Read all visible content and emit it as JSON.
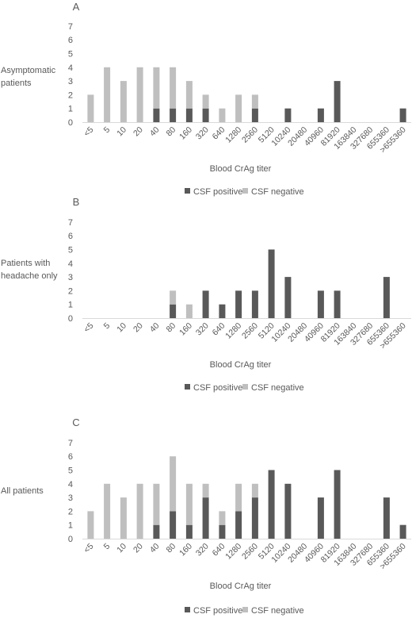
{
  "colors": {
    "positive": "#595959",
    "negative": "#BFBFBF",
    "text": "#595959"
  },
  "chart_data": [
    {
      "type": "bar",
      "stacked": true,
      "panel_label": "A",
      "row_label": [
        "Asymptomatic",
        "patients"
      ],
      "xlabel": "Blood CrAg titer",
      "ylim": [
        0,
        7
      ],
      "yticks": [
        0,
        1,
        2,
        3,
        4,
        5,
        6,
        7
      ],
      "grid": false,
      "legend_position": "bottom",
      "categories": [
        "<5",
        "5",
        "10",
        "20",
        "40",
        "80",
        "160",
        "320",
        "640",
        "1280",
        "2560",
        "5120",
        "10240",
        "20480",
        "40960",
        "81920",
        "163840",
        "327680",
        "655360",
        ">655360"
      ],
      "series": [
        {
          "name": "CSF positive",
          "values": [
            0,
            0,
            0,
            0,
            1,
            1,
            1,
            1,
            0,
            0,
            1,
            0,
            1,
            0,
            1,
            3,
            0,
            0,
            0,
            1
          ]
        },
        {
          "name": "CSF negative",
          "values": [
            2,
            4,
            3,
            4,
            3,
            3,
            2,
            1,
            1,
            2,
            1,
            0,
            0,
            0,
            0,
            0,
            0,
            0,
            0,
            0
          ]
        }
      ]
    },
    {
      "type": "bar",
      "stacked": true,
      "panel_label": "B",
      "row_label": [
        "Patients with",
        "headache only"
      ],
      "xlabel": "Blood CrAg titer",
      "ylim": [
        0,
        7
      ],
      "yticks": [
        0,
        1,
        2,
        3,
        4,
        5,
        6,
        7
      ],
      "grid": false,
      "legend_position": "bottom",
      "categories": [
        "<5",
        "5",
        "10",
        "20",
        "40",
        "80",
        "160",
        "320",
        "640",
        "1280",
        "2560",
        "5120",
        "10240",
        "20480",
        "40960",
        "81920",
        "163840",
        "327680",
        "655360",
        ">655360"
      ],
      "series": [
        {
          "name": "CSF positive",
          "values": [
            0,
            0,
            0,
            0,
            0,
            1,
            0,
            2,
            1,
            2,
            2,
            5,
            3,
            0,
            2,
            2,
            0,
            0,
            3,
            0
          ]
        },
        {
          "name": "CSF negative",
          "values": [
            0,
            0,
            0,
            0,
            0,
            1,
            1,
            0,
            0,
            0,
            0,
            0,
            0,
            0,
            0,
            0,
            0,
            0,
            0,
            0
          ]
        }
      ]
    },
    {
      "type": "bar",
      "stacked": true,
      "panel_label": "C",
      "row_label": [
        "All patients"
      ],
      "xlabel": "Blood CrAg titer",
      "ylim": [
        0,
        7
      ],
      "yticks": [
        0,
        1,
        2,
        3,
        4,
        5,
        6,
        7
      ],
      "grid": false,
      "legend_position": "bottom",
      "categories": [
        "<5",
        "5",
        "10",
        "20",
        "40",
        "80",
        "160",
        "320",
        "640",
        "1280",
        "2560",
        "5120",
        "10240",
        "20480",
        "40960",
        "81920",
        "163840",
        "327680",
        "655360",
        ">655360"
      ],
      "series": [
        {
          "name": "CSF positive",
          "values": [
            0,
            0,
            0,
            0,
            1,
            2,
            1,
            3,
            1,
            2,
            3,
            5,
            4,
            0,
            3,
            5,
            0,
            0,
            3,
            1
          ]
        },
        {
          "name": "CSF negative",
          "values": [
            2,
            4,
            3,
            4,
            3,
            4,
            3,
            1,
            1,
            2,
            1,
            0,
            0,
            0,
            0,
            0,
            0,
            0,
            0,
            0
          ]
        }
      ]
    }
  ]
}
